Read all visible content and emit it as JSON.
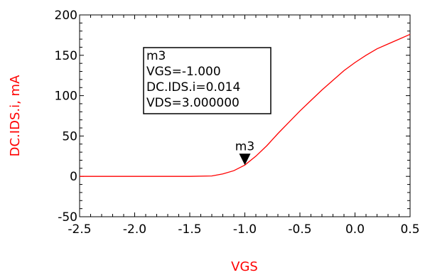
{
  "chart_data": {
    "type": "line",
    "xlabel": "VGS",
    "ylabel": "DC.IDS.i, mA",
    "xlim": [
      -2.5,
      0.5
    ],
    "ylim": [
      -50,
      200
    ],
    "x_ticks": [
      "-2.5",
      "-2.0",
      "-1.5",
      "-1.0",
      "-0.5",
      "0.0",
      "0.5"
    ],
    "y_ticks": [
      "200",
      "150",
      "100",
      "50",
      "0",
      "-50"
    ],
    "grid": false,
    "colors": {
      "trace": "#ff0000",
      "axis_label": "#ff0000",
      "axes": "#000000"
    },
    "series": [
      {
        "x": [
          -2.5,
          -2.0,
          -1.5,
          -1.3,
          -1.2,
          -1.1,
          -1.0,
          -0.9,
          -0.8,
          -0.7,
          -0.6,
          -0.5,
          -0.4,
          -0.3,
          -0.2,
          -0.1,
          0.0,
          0.1,
          0.2,
          0.3,
          0.4,
          0.5
        ],
        "y": [
          0,
          0,
          0,
          0.5,
          3,
          7,
          14,
          25,
          38,
          53,
          67,
          81,
          94,
          107,
          119,
          131,
          141,
          150,
          158,
          164,
          170,
          176
        ]
      }
    ],
    "marker": {
      "name": "m3",
      "x": -1.0,
      "y": 14,
      "lines": [
        "m3",
        "VGS=-1.000",
        "DC.IDS.i=0.014",
        "VDS=3.000000"
      ]
    }
  }
}
